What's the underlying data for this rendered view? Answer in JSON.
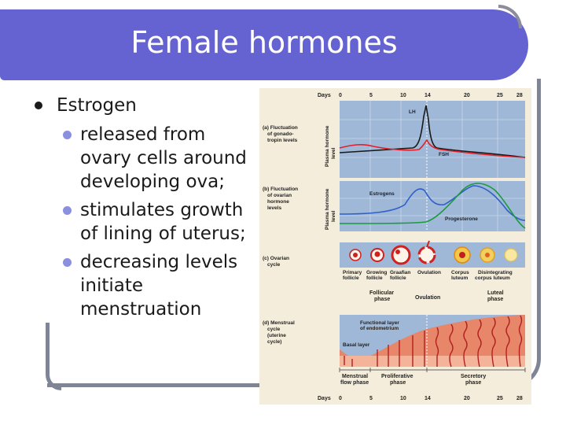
{
  "slide": {
    "title": "Female hormones",
    "bullet": "Estrogen",
    "sub_bullets": [
      "released from ovary cells around developing ova;",
      "stimulates growth of lining of uterus;",
      "decreasing levels initiate menstruation"
    ]
  },
  "figure": {
    "days_label": "Days",
    "day_ticks": [
      "0",
      "5",
      "10",
      "14",
      "20",
      "25",
      "28"
    ],
    "panel_a_caption": [
      "(a) Fluctuation",
      "of gonado-",
      "tropin levels"
    ],
    "panel_b_caption": [
      "(b) Fluctuation",
      "of ovarian",
      "hormone",
      "levels"
    ],
    "panel_c_caption": [
      "(c) Ovarian",
      "cycle"
    ],
    "panel_d_caption": [
      "(d) Menstrual",
      "cycle",
      "(uterine",
      "cycle)"
    ],
    "y_axis_label_a": [
      "Plasma hormone",
      "level"
    ],
    "y_axis_label_b": [
      "Plasma hormone",
      "level"
    ],
    "lh_label": "LH",
    "fsh_label": "FSH",
    "estrogens_label": "Estrogens",
    "progesterone_label": "Progesterone",
    "follicle_labels": [
      [
        "Primary",
        "follicle"
      ],
      [
        "Growing",
        "follicle"
      ],
      [
        "Graafian",
        "follicle"
      ],
      [
        "Ovulation"
      ],
      [
        "Corpus",
        "luteum"
      ],
      [
        "Disintegrating",
        "corpus luteum"
      ]
    ],
    "follicular_phase": [
      "Follicular",
      "phase"
    ],
    "ovulation_label": "Ovulation",
    "luteal_phase": [
      "Luteal",
      "phase"
    ],
    "functional_layer": [
      "Functional layer",
      "of endometrium"
    ],
    "basal_layer": "Basal layer",
    "menstrual_phase": [
      "Menstrual",
      "flow phase"
    ],
    "proliferative_phase": [
      "Proliferative",
      "phase"
    ],
    "secretory_phase": [
      "Secretory",
      "phase"
    ],
    "colors": {
      "lh_fsh_line": "#1a1a1a",
      "fsh_line": "#e0202a",
      "estrogen_line": "#2f5fc8",
      "progesterone_line": "#1c9a3c",
      "panel_bg": "#9fb8d8",
      "endometrium": "#e8866a"
    }
  }
}
